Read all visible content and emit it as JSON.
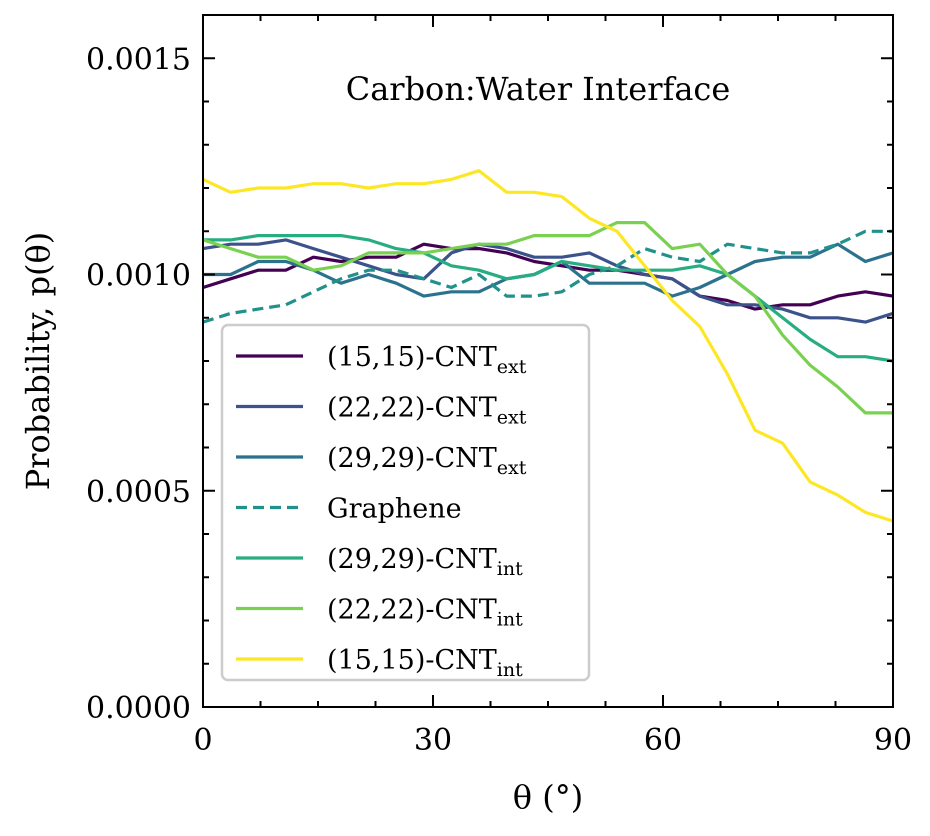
{
  "chart_data": {
    "type": "line",
    "title": "Carbon:Water Interface",
    "xlabel": "θ (°)",
    "ylabel": "Probability, p(θ)",
    "xlim": [
      0,
      90
    ],
    "ylim": [
      0,
      0.0016
    ],
    "xticks": [
      0,
      30,
      60,
      90
    ],
    "xtick_labels": [
      "0",
      "30",
      "60",
      "90"
    ],
    "yticks": [
      0,
      0.0005,
      0.001,
      0.0015
    ],
    "ytick_labels": [
      "0.0000",
      "0.0005",
      "0.0010",
      "0.0015"
    ],
    "grid": false,
    "legend_position": "lower-left",
    "x": [
      0,
      3.6,
      7.2,
      10.8,
      14.4,
      18,
      21.6,
      25.2,
      28.8,
      32.4,
      36,
      39.6,
      43.2,
      46.8,
      50.4,
      54,
      57.6,
      61.2,
      64.8,
      68.4,
      72,
      75.6,
      79.2,
      82.8,
      86.4,
      90
    ],
    "series": [
      {
        "name": "(15,15)-CNT",
        "subscript": "ext",
        "color": "#440154",
        "dash": "solid",
        "values": [
          0.00097,
          0.00099,
          0.00101,
          0.00101,
          0.00104,
          0.00103,
          0.00104,
          0.00104,
          0.00107,
          0.00106,
          0.00106,
          0.00105,
          0.00103,
          0.00102,
          0.00101,
          0.00101,
          0.001,
          0.00099,
          0.00095,
          0.00094,
          0.00092,
          0.00093,
          0.00093,
          0.00095,
          0.00096,
          0.00095
        ]
      },
      {
        "name": "(22,22)-CNT",
        "subscript": "ext",
        "color": "#3b528b",
        "dash": "solid",
        "values": [
          0.00106,
          0.00107,
          0.00107,
          0.00108,
          0.00106,
          0.00104,
          0.00102,
          0.001,
          0.00099,
          0.00105,
          0.00107,
          0.00106,
          0.00104,
          0.00104,
          0.00105,
          0.00102,
          0.001,
          0.00099,
          0.00095,
          0.00093,
          0.00093,
          0.00092,
          0.0009,
          0.0009,
          0.00089,
          0.00091
        ]
      },
      {
        "name": "(29,29)-CNT",
        "subscript": "ext",
        "color": "#2c728e",
        "dash": "solid",
        "values": [
          0.001,
          0.001,
          0.00103,
          0.00103,
          0.00101,
          0.00098,
          0.001,
          0.00098,
          0.00095,
          0.00096,
          0.00096,
          0.00099,
          0.001,
          0.00103,
          0.00098,
          0.00098,
          0.00098,
          0.00095,
          0.00097,
          0.001,
          0.00103,
          0.00104,
          0.00104,
          0.00107,
          0.00103,
          0.00105
        ]
      },
      {
        "name": "Graphene",
        "subscript": "",
        "color": "#21918c",
        "dash": "dashed",
        "values": [
          0.00089,
          0.00091,
          0.00092,
          0.00093,
          0.00096,
          0.00099,
          0.00101,
          0.00101,
          0.00099,
          0.00097,
          0.001,
          0.00095,
          0.00095,
          0.00096,
          0.001,
          0.00102,
          0.00106,
          0.00104,
          0.00103,
          0.00107,
          0.00106,
          0.00105,
          0.00105,
          0.00107,
          0.0011,
          0.0011
        ]
      },
      {
        "name": "(29,29)-CNT",
        "subscript": "int",
        "color": "#27ad81",
        "dash": "solid",
        "values": [
          0.00108,
          0.00108,
          0.00109,
          0.00109,
          0.00109,
          0.00109,
          0.00108,
          0.00106,
          0.00105,
          0.00102,
          0.00101,
          0.00099,
          0.001,
          0.00103,
          0.00102,
          0.00101,
          0.00101,
          0.00101,
          0.00102,
          0.001,
          0.00095,
          0.0009,
          0.00085,
          0.00081,
          0.00081,
          0.0008
        ]
      },
      {
        "name": "(22,22)-CNT",
        "subscript": "int",
        "color": "#7ad151",
        "dash": "solid",
        "values": [
          0.00108,
          0.00106,
          0.00104,
          0.00104,
          0.00101,
          0.00102,
          0.00105,
          0.00105,
          0.00105,
          0.00106,
          0.00107,
          0.00107,
          0.00109,
          0.00109,
          0.00109,
          0.00112,
          0.00112,
          0.00106,
          0.00107,
          0.001,
          0.00095,
          0.00086,
          0.00079,
          0.00074,
          0.00068,
          0.00068
        ]
      },
      {
        "name": "(15,15)-CNT",
        "subscript": "int",
        "color": "#fde725",
        "dash": "solid",
        "values": [
          0.00122,
          0.00119,
          0.0012,
          0.0012,
          0.00121,
          0.00121,
          0.0012,
          0.00121,
          0.00121,
          0.00122,
          0.00124,
          0.00119,
          0.00119,
          0.00118,
          0.00113,
          0.0011,
          0.00102,
          0.00094,
          0.00088,
          0.00077,
          0.00064,
          0.00061,
          0.00052,
          0.00049,
          0.00045,
          0.00043
        ]
      }
    ]
  }
}
